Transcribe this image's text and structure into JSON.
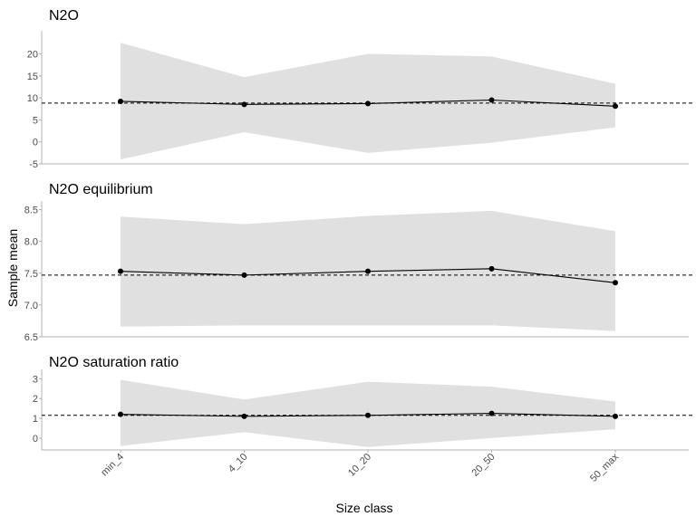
{
  "chart_data": {
    "type": "line",
    "xlabel": "Size class",
    "ylabel": "Sample mean",
    "categories": [
      "min_4",
      "4_10",
      "10_20",
      "20_50",
      "50_max"
    ],
    "grid": false,
    "reference_line": "dashed horizontal",
    "band_color": "#e0e0e0",
    "line_color": "#000000",
    "axis_color": "#b3b3b3",
    "panels": [
      {
        "title": "N2O",
        "ylim": [
          -5,
          24
        ],
        "yticks": [
          -5,
          0,
          5,
          10,
          15,
          20
        ],
        "values": [
          9.2,
          8.5,
          8.7,
          9.5,
          8.1
        ],
        "band_lower": [
          -4,
          2.2,
          -2.5,
          -0.2,
          3.3
        ],
        "band_upper": [
          22.5,
          14.7,
          20,
          19.4,
          13.2
        ],
        "hline": 8.8
      },
      {
        "title": "N2O equilibrium",
        "ylim": [
          6.5,
          8.55
        ],
        "yticks": [
          6.5,
          7.0,
          7.5,
          8.0,
          8.5
        ],
        "ytick_labels": [
          "6.5",
          "7.0",
          "7.5",
          "8.0",
          "8.5"
        ],
        "values": [
          7.53,
          7.47,
          7.53,
          7.57,
          7.35
        ],
        "band_lower": [
          6.66,
          6.68,
          6.68,
          6.68,
          6.59
        ],
        "band_upper": [
          8.39,
          8.27,
          8.4,
          8.48,
          8.16
        ],
        "hline": 7.47
      },
      {
        "title": "N2O saturation ratio",
        "ylim": [
          -0.6,
          3.2
        ],
        "yticks": [
          0,
          1,
          2,
          3
        ],
        "values": [
          1.2,
          1.1,
          1.15,
          1.25,
          1.1
        ],
        "band_lower": [
          -0.4,
          0.3,
          -0.45,
          0.0,
          0.45
        ],
        "band_upper": [
          2.95,
          1.95,
          2.85,
          2.6,
          1.85
        ],
        "hline": 1.15
      }
    ]
  }
}
